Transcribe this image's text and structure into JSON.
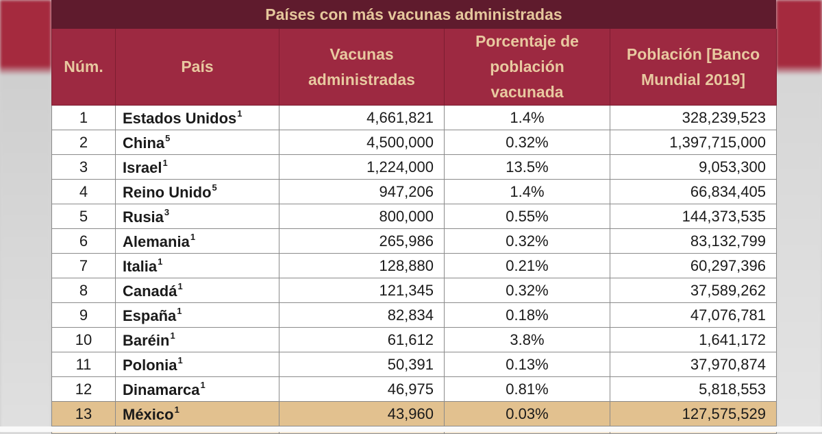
{
  "title": "Países con más vacunas administradas",
  "headers": [
    "Núm.",
    "País",
    "Vacunas administradas",
    "Porcentaje de población vacunada",
    "Población [Banco Mundial 2019]"
  ],
  "colors": {
    "title_bg": "#5f1b2d",
    "header_bg": "#9d2941",
    "header_text": "#e8c9a0",
    "highlight_row": "#e2c18f"
  },
  "rows": [
    {
      "num": "1",
      "country": "Estados Unidos",
      "note": "1",
      "vaccines": "4,661,821",
      "percent": "1.4%",
      "population": "328,239,523"
    },
    {
      "num": "2",
      "country": "China",
      "note": "5",
      "vaccines": "4,500,000",
      "percent": "0.32%",
      "population": "1,397,715,000"
    },
    {
      "num": "3",
      "country": "Israel",
      "note": "1",
      "vaccines": "1,224,000",
      "percent": "13.5%",
      "population": "9,053,300"
    },
    {
      "num": "4",
      "country": "Reino Unido",
      "note": "5",
      "vaccines": "947,206",
      "percent": "1.4%",
      "population": "66,834,405"
    },
    {
      "num": "5",
      "country": "Rusia",
      "note": "3",
      "vaccines": "800,000",
      "percent": "0.55%",
      "population": "144,373,535"
    },
    {
      "num": "6",
      "country": "Alemania",
      "note": "1",
      "vaccines": "265,986",
      "percent": "0.32%",
      "population": "83,132,799"
    },
    {
      "num": "7",
      "country": "Italia",
      "note": "1",
      "vaccines": "128,880",
      "percent": "0.21%",
      "population": "60,297,396"
    },
    {
      "num": "8",
      "country": "Canadá",
      "note": "1",
      "vaccines": "121,345",
      "percent": "0.32%",
      "population": "37,589,262"
    },
    {
      "num": "9",
      "country": "España",
      "note": "1",
      "vaccines": "82,834",
      "percent": "0.18%",
      "population": "47,076,781"
    },
    {
      "num": "10",
      "country": "Baréin",
      "note": "1",
      "vaccines": "61,612",
      "percent": "3.8%",
      "population": "1,641,172"
    },
    {
      "num": "11",
      "country": "Polonia",
      "note": "1",
      "vaccines": "50,391",
      "percent": "0.13%",
      "population": "37,970,874"
    },
    {
      "num": "12",
      "country": "Dinamarca",
      "note": "1",
      "vaccines": "46,975",
      "percent": "0.81%",
      "population": "5,818,553"
    },
    {
      "num": "13",
      "country": "México",
      "note": "1",
      "vaccines": "43,960",
      "percent": "0.03%",
      "population": "127,575,529",
      "highlight": true
    }
  ]
}
